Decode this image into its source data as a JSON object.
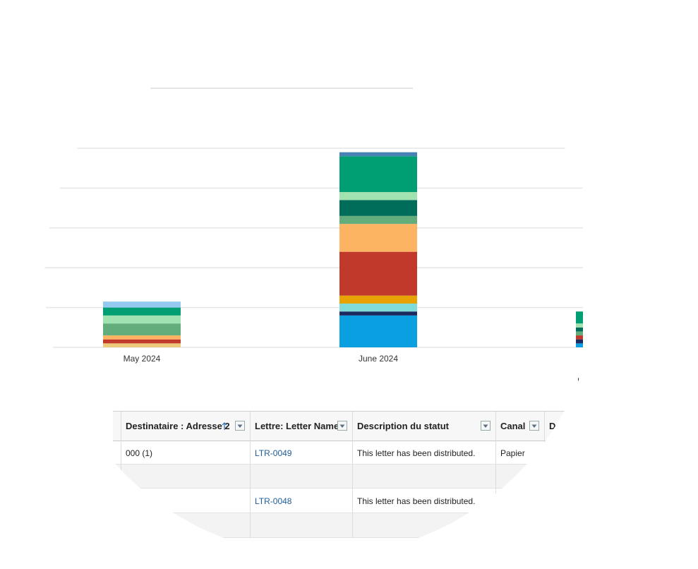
{
  "chart_data": {
    "type": "bar",
    "stacked": true,
    "categories": [
      "May 2024",
      "June 2024",
      null
    ],
    "series": [
      {
        "color": "#edc97a",
        "values": [
          0.1,
          0,
          0
        ]
      },
      {
        "color": "#0a9fe0",
        "values": [
          0,
          0.8,
          0.1
        ]
      },
      {
        "color": "#1b2a5e",
        "values": [
          0,
          0.1,
          0.1
        ]
      },
      {
        "color": "#7fdcd8",
        "values": [
          0,
          0.2,
          0
        ]
      },
      {
        "color": "#e8a202",
        "values": [
          0,
          0.2,
          0
        ]
      },
      {
        "color": "#c0392b",
        "values": [
          0.1,
          1.1,
          0.1
        ]
      },
      {
        "color": "#fdb462",
        "values": [
          0.1,
          0.7,
          0
        ]
      },
      {
        "color": "#62ad7b",
        "values": [
          0.3,
          0.2,
          0.1
        ]
      },
      {
        "color": "#006d5b",
        "values": [
          0,
          0.4,
          0.1
        ]
      },
      {
        "color": "#a0e2b0",
        "values": [
          0.2,
          0.2,
          0.1
        ]
      },
      {
        "color": "#009e73",
        "values": [
          0.2,
          0.9,
          0.3
        ]
      },
      {
        "color": "#4682b4",
        "values": [
          0,
          0.1,
          0
        ]
      },
      {
        "color": "#96c9f0",
        "values": [
          0.15,
          0,
          0
        ]
      }
    ],
    "ylim": [
      0,
      5
    ],
    "yticks": [
      0,
      1,
      2,
      3,
      4,
      5
    ],
    "grid": true
  },
  "legend_fragment": "Le",
  "table": {
    "columns": [
      "Destinataire : Adresse 2",
      "Lettre: Letter Name",
      "Description du statut",
      "Canal",
      "Date d'é"
    ],
    "rows": [
      [
        "000 (1)",
        "LTR-0049",
        "This letter has been distributed.",
        "Papier",
        null
      ],
      [
        null,
        null,
        null,
        null,
        null
      ],
      [
        null,
        "LTR-0048",
        "This letter has been distributed.",
        "Papier",
        null
      ],
      [
        null,
        null,
        null,
        null,
        null
      ]
    ]
  }
}
